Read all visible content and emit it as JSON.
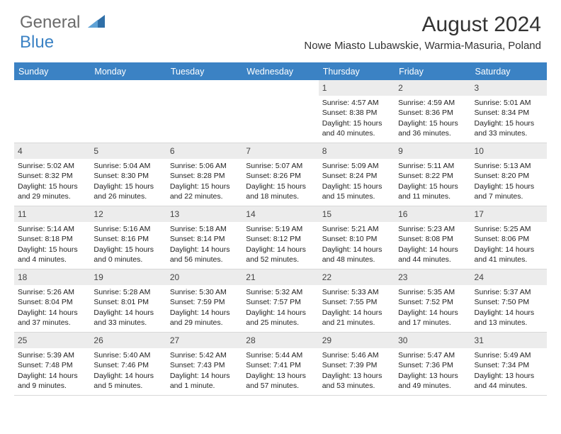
{
  "logo": {
    "text_left": "General",
    "text_bottom": "Blue",
    "triangle_color": "#2f6fa8"
  },
  "header": {
    "month_title": "August 2024",
    "location": "Nowe Miasto Lubawskie, Warmia-Masuria, Poland"
  },
  "colors": {
    "header_bg": "#3b82c4",
    "header_text": "#ffffff",
    "date_bar_bg": "#ececec",
    "border": "#d8d8d8",
    "text": "#222222"
  },
  "day_names": [
    "Sunday",
    "Monday",
    "Tuesday",
    "Wednesday",
    "Thursday",
    "Friday",
    "Saturday"
  ],
  "weeks": [
    [
      {
        "empty": true
      },
      {
        "empty": true
      },
      {
        "empty": true
      },
      {
        "empty": true
      },
      {
        "date": "1",
        "sunrise": "Sunrise: 4:57 AM",
        "sunset": "Sunset: 8:38 PM",
        "daylight": "Daylight: 15 hours and 40 minutes."
      },
      {
        "date": "2",
        "sunrise": "Sunrise: 4:59 AM",
        "sunset": "Sunset: 8:36 PM",
        "daylight": "Daylight: 15 hours and 36 minutes."
      },
      {
        "date": "3",
        "sunrise": "Sunrise: 5:01 AM",
        "sunset": "Sunset: 8:34 PM",
        "daylight": "Daylight: 15 hours and 33 minutes."
      }
    ],
    [
      {
        "date": "4",
        "sunrise": "Sunrise: 5:02 AM",
        "sunset": "Sunset: 8:32 PM",
        "daylight": "Daylight: 15 hours and 29 minutes."
      },
      {
        "date": "5",
        "sunrise": "Sunrise: 5:04 AM",
        "sunset": "Sunset: 8:30 PM",
        "daylight": "Daylight: 15 hours and 26 minutes."
      },
      {
        "date": "6",
        "sunrise": "Sunrise: 5:06 AM",
        "sunset": "Sunset: 8:28 PM",
        "daylight": "Daylight: 15 hours and 22 minutes."
      },
      {
        "date": "7",
        "sunrise": "Sunrise: 5:07 AM",
        "sunset": "Sunset: 8:26 PM",
        "daylight": "Daylight: 15 hours and 18 minutes."
      },
      {
        "date": "8",
        "sunrise": "Sunrise: 5:09 AM",
        "sunset": "Sunset: 8:24 PM",
        "daylight": "Daylight: 15 hours and 15 minutes."
      },
      {
        "date": "9",
        "sunrise": "Sunrise: 5:11 AM",
        "sunset": "Sunset: 8:22 PM",
        "daylight": "Daylight: 15 hours and 11 minutes."
      },
      {
        "date": "10",
        "sunrise": "Sunrise: 5:13 AM",
        "sunset": "Sunset: 8:20 PM",
        "daylight": "Daylight: 15 hours and 7 minutes."
      }
    ],
    [
      {
        "date": "11",
        "sunrise": "Sunrise: 5:14 AM",
        "sunset": "Sunset: 8:18 PM",
        "daylight": "Daylight: 15 hours and 4 minutes."
      },
      {
        "date": "12",
        "sunrise": "Sunrise: 5:16 AM",
        "sunset": "Sunset: 8:16 PM",
        "daylight": "Daylight: 15 hours and 0 minutes."
      },
      {
        "date": "13",
        "sunrise": "Sunrise: 5:18 AM",
        "sunset": "Sunset: 8:14 PM",
        "daylight": "Daylight: 14 hours and 56 minutes."
      },
      {
        "date": "14",
        "sunrise": "Sunrise: 5:19 AM",
        "sunset": "Sunset: 8:12 PM",
        "daylight": "Daylight: 14 hours and 52 minutes."
      },
      {
        "date": "15",
        "sunrise": "Sunrise: 5:21 AM",
        "sunset": "Sunset: 8:10 PM",
        "daylight": "Daylight: 14 hours and 48 minutes."
      },
      {
        "date": "16",
        "sunrise": "Sunrise: 5:23 AM",
        "sunset": "Sunset: 8:08 PM",
        "daylight": "Daylight: 14 hours and 44 minutes."
      },
      {
        "date": "17",
        "sunrise": "Sunrise: 5:25 AM",
        "sunset": "Sunset: 8:06 PM",
        "daylight": "Daylight: 14 hours and 41 minutes."
      }
    ],
    [
      {
        "date": "18",
        "sunrise": "Sunrise: 5:26 AM",
        "sunset": "Sunset: 8:04 PM",
        "daylight": "Daylight: 14 hours and 37 minutes."
      },
      {
        "date": "19",
        "sunrise": "Sunrise: 5:28 AM",
        "sunset": "Sunset: 8:01 PM",
        "daylight": "Daylight: 14 hours and 33 minutes."
      },
      {
        "date": "20",
        "sunrise": "Sunrise: 5:30 AM",
        "sunset": "Sunset: 7:59 PM",
        "daylight": "Daylight: 14 hours and 29 minutes."
      },
      {
        "date": "21",
        "sunrise": "Sunrise: 5:32 AM",
        "sunset": "Sunset: 7:57 PM",
        "daylight": "Daylight: 14 hours and 25 minutes."
      },
      {
        "date": "22",
        "sunrise": "Sunrise: 5:33 AM",
        "sunset": "Sunset: 7:55 PM",
        "daylight": "Daylight: 14 hours and 21 minutes."
      },
      {
        "date": "23",
        "sunrise": "Sunrise: 5:35 AM",
        "sunset": "Sunset: 7:52 PM",
        "daylight": "Daylight: 14 hours and 17 minutes."
      },
      {
        "date": "24",
        "sunrise": "Sunrise: 5:37 AM",
        "sunset": "Sunset: 7:50 PM",
        "daylight": "Daylight: 14 hours and 13 minutes."
      }
    ],
    [
      {
        "date": "25",
        "sunrise": "Sunrise: 5:39 AM",
        "sunset": "Sunset: 7:48 PM",
        "daylight": "Daylight: 14 hours and 9 minutes."
      },
      {
        "date": "26",
        "sunrise": "Sunrise: 5:40 AM",
        "sunset": "Sunset: 7:46 PM",
        "daylight": "Daylight: 14 hours and 5 minutes."
      },
      {
        "date": "27",
        "sunrise": "Sunrise: 5:42 AM",
        "sunset": "Sunset: 7:43 PM",
        "daylight": "Daylight: 14 hours and 1 minute."
      },
      {
        "date": "28",
        "sunrise": "Sunrise: 5:44 AM",
        "sunset": "Sunset: 7:41 PM",
        "daylight": "Daylight: 13 hours and 57 minutes."
      },
      {
        "date": "29",
        "sunrise": "Sunrise: 5:46 AM",
        "sunset": "Sunset: 7:39 PM",
        "daylight": "Daylight: 13 hours and 53 minutes."
      },
      {
        "date": "30",
        "sunrise": "Sunrise: 5:47 AM",
        "sunset": "Sunset: 7:36 PM",
        "daylight": "Daylight: 13 hours and 49 minutes."
      },
      {
        "date": "31",
        "sunrise": "Sunrise: 5:49 AM",
        "sunset": "Sunset: 7:34 PM",
        "daylight": "Daylight: 13 hours and 44 minutes."
      }
    ]
  ]
}
